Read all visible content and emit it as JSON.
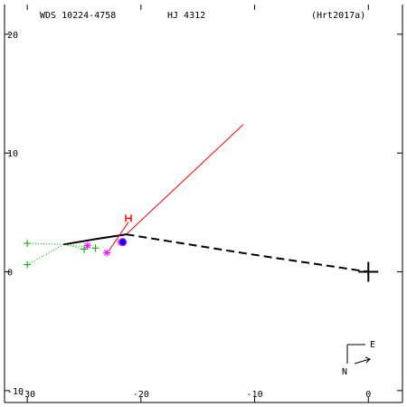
{
  "header": {
    "wds": "WDS 10224-4758",
    "discoverer": "HJ 4312",
    "reference": "(Hrt2017a)"
  },
  "compass": {
    "east": "E",
    "north": "N"
  },
  "colors": {
    "axes": "#000000",
    "orbit": "#000000",
    "node_line": "#ff0000",
    "micrometer": "#00aa00",
    "speckle": "#ff00ff",
    "speckle_latest": "#0000ff",
    "hipparcos": "#ff0000",
    "residual": "#ff0000"
  },
  "chart_data": {
    "type": "scatter",
    "title": "",
    "xlabel": "",
    "ylabel": "",
    "xlim": [
      -32,
      3
    ],
    "ylim": [
      -11,
      22.5
    ],
    "x_ticks": [
      -30,
      -20,
      -10,
      0
    ],
    "y_ticks": [
      -10,
      0,
      10,
      20
    ],
    "x_tick_labels": [
      "-30",
      "-20",
      "-10",
      "0"
    ],
    "y_tick_labels": [
      "-10",
      "0",
      "10",
      "20"
    ],
    "primary": {
      "x": 0,
      "y": 0,
      "marker": "plus"
    },
    "series": [
      {
        "name": "",
        "kind": "orbit-visible",
        "style": "solid",
        "x": [
          -26.8,
          -24.0,
          -21.3
        ],
        "y": [
          2.3,
          2.75,
          3.15
        ]
      },
      {
        "name": "",
        "kind": "orbit-hidden",
        "style": "dashed",
        "x": [
          -21.3,
          -10.5,
          0
        ],
        "y": [
          3.15,
          1.5,
          0
        ]
      },
      {
        "name": "",
        "kind": "node-line",
        "style": "thin",
        "x": [
          -21.3,
          -11.0
        ],
        "y": [
          3.15,
          12.4
        ]
      },
      {
        "name": "",
        "kind": "micrometer",
        "marker": "plus",
        "x": [
          -30.0,
          -30.0,
          -25.0,
          -24.0
        ],
        "y": [
          2.4,
          0.6,
          1.9,
          2.0
        ]
      },
      {
        "name": "",
        "kind": "speckle",
        "marker": "asterisk",
        "x": [
          -24.7,
          -23.0,
          -21.8
        ],
        "y": [
          2.2,
          1.6,
          2.5
        ]
      },
      {
        "name": "",
        "kind": "speckle-latest",
        "marker": "dot",
        "x": [
          -21.6
        ],
        "y": [
          2.5
        ]
      },
      {
        "name": "",
        "kind": "hipparcos",
        "marker": "H",
        "x": [
          -21.1
        ],
        "y": [
          4.5
        ]
      }
    ],
    "grid": false,
    "legend": "none"
  }
}
